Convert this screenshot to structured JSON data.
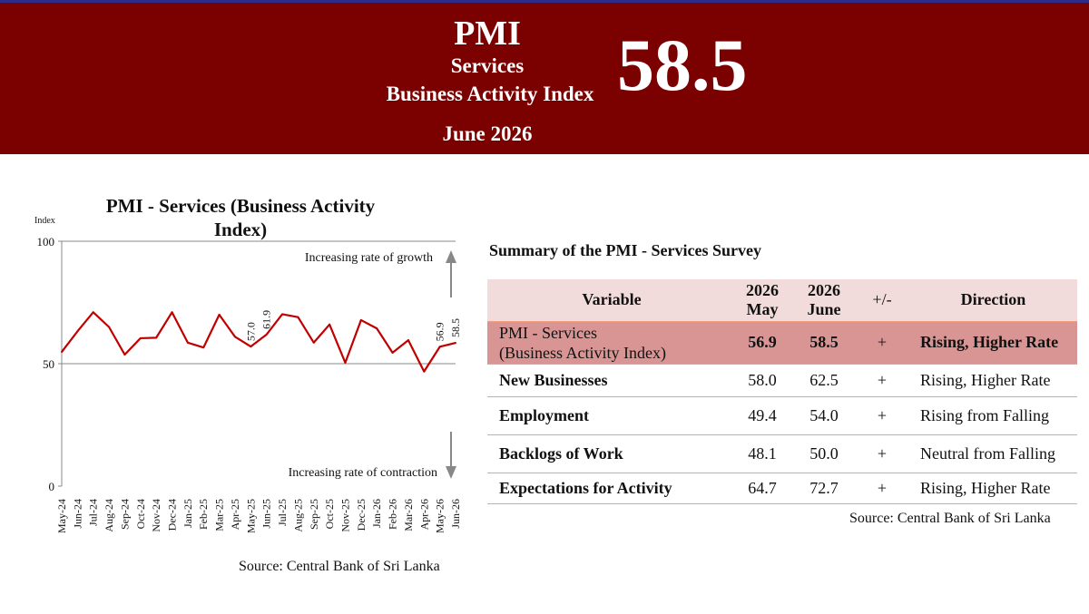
{
  "header": {
    "title": "PMI",
    "subtitle_1": "Services",
    "subtitle_2": "Business Activity Index",
    "value": "58.5",
    "month": "June 2026",
    "background_color": "#7b0000"
  },
  "chart_data": {
    "type": "line",
    "title": "PMI - Services (Business Activity Index)",
    "title_line1": "PMI - Services (Business Activity",
    "title_line2": "Index)",
    "ylabel": "Index",
    "ylim": [
      0,
      100
    ],
    "yticks": [
      0,
      50,
      100
    ],
    "reference_line": 50,
    "series_color": "#c00000",
    "categories": [
      "May-24",
      "Jun-24",
      "Jul-24",
      "Aug-24",
      "Sep-24",
      "Oct-24",
      "Nov-24",
      "Dec-24",
      "Jan-25",
      "Feb-25",
      "Mar-25",
      "Apr-25",
      "May-25",
      "Jun-25",
      "Jul-25",
      "Aug-25",
      "Sep-25",
      "Oct-25",
      "Nov-25",
      "Dec-25",
      "Jan-26",
      "Feb-26",
      "Mar-26",
      "Apr-26",
      "May-26",
      "Jun-26"
    ],
    "values": [
      54.8,
      63.2,
      71.0,
      65.0,
      53.7,
      60.4,
      60.6,
      71.0,
      58.6,
      56.6,
      70.0,
      61.0,
      57.0,
      61.9,
      70.2,
      69.0,
      58.6,
      66.0,
      50.4,
      67.8,
      64.4,
      54.5,
      59.6,
      46.8,
      56.9,
      58.5
    ],
    "data_labels": [
      {
        "category": "May-25",
        "label": "57.0"
      },
      {
        "category": "Jun-25",
        "label": "61.9"
      },
      {
        "category": "May-26",
        "label": "56.9"
      },
      {
        "category": "Jun-26",
        "label": "58.5"
      }
    ],
    "annotations": {
      "growth": "Increasing rate of growth",
      "contraction": "Increasing rate of contraction"
    },
    "source": "Source: Central Bank of Sri Lanka"
  },
  "table": {
    "title": "Summary of the PMI - Services Survey",
    "headers": {
      "variable": "Variable",
      "col_may_1": "2026",
      "col_may_2": "May",
      "col_june_1": "2026",
      "col_june_2": "June",
      "change": "+/-",
      "direction": "Direction"
    },
    "rows": [
      {
        "variable_1": "PMI - Services",
        "variable_2": "(Business Activity Index)",
        "may": "56.9",
        "june": "58.5",
        "change": "+",
        "direction": "Rising, Higher Rate"
      },
      {
        "variable": "New Businesses",
        "may": "58.0",
        "june": "62.5",
        "change": "+",
        "direction": "Rising, Higher Rate"
      },
      {
        "variable": "Employment",
        "may": "49.4",
        "june": "54.0",
        "change": "+",
        "direction": "Rising from Falling"
      },
      {
        "variable": "Backlogs of Work",
        "may": "48.1",
        "june": "50.0",
        "change": "+",
        "direction": "Neutral from Falling"
      },
      {
        "variable": "Expectations for Activity",
        "may": "64.7",
        "june": "72.7",
        "change": "+",
        "direction": "Rising, Higher Rate"
      }
    ],
    "highlight_color": "#d99594",
    "header_color": "#f2dcdb",
    "source": "Source: Central Bank of Sri Lanka"
  }
}
